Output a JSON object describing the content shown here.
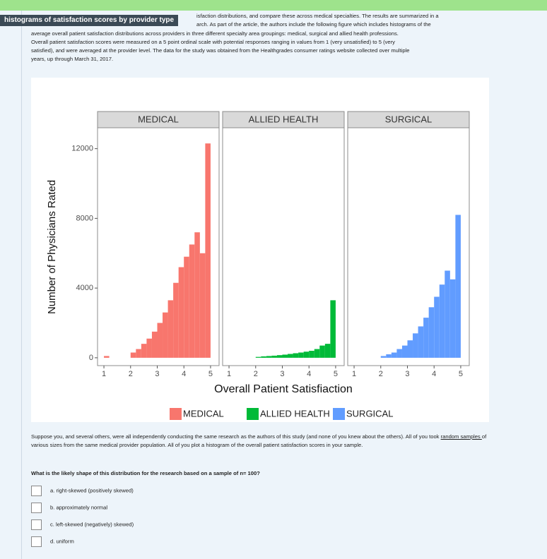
{
  "tooltip": "histograms of satisfaction scores by provider type",
  "intro_lines": [
    "isfaction distributions, and compare these across medical specialties.  The results are summarized in a",
    "arch.  As part of the article, the authors include the following figure which includes histograms of the",
    "average overall patient satisfaction distributions across providers in three different specialty area groupings: medical, surgical and allied health professions.",
    "Overall patient satisfaction scores were measured on a 5 point ordinal scale with potential responses ranging in values from 1 (very unsatisfied) to 5 (very",
    "satisfied), and were averaged at the provider level. The data for the study was obtained  from the Healthgrades consumer ratings website collected over multiple",
    "years, up through March 31, 2017."
  ],
  "chart_data": {
    "type": "histogram",
    "xlabel": "Overall Patient Satisfiaction",
    "ylabel": "Number of Physicians Rated",
    "xlim": [
      0.76,
      5.32
    ],
    "xticks": [
      1,
      2,
      3,
      4,
      5
    ],
    "ylim": [
      -450,
      13200
    ],
    "yticks": [
      0,
      4000,
      8000,
      12000
    ],
    "grid": false,
    "bins": [
      1.0,
      1.2,
      1.4,
      1.6,
      1.8,
      2.0,
      2.2,
      2.4,
      2.6,
      2.8,
      3.0,
      3.2,
      3.4,
      3.6,
      3.8,
      4.0,
      4.2,
      4.4,
      4.6,
      4.8,
      5.0
    ],
    "panels": [
      {
        "name": "MEDICAL",
        "color": "#f8766d",
        "values": [
          100,
          0,
          0,
          0,
          0,
          300,
          500,
          800,
          1100,
          1500,
          2000,
          2600,
          3300,
          4300,
          5200,
          5800,
          6500,
          7200,
          6000,
          12300
        ]
      },
      {
        "name": "ALLIED HEALTH",
        "color": "#00ba38",
        "values": [
          0,
          0,
          0,
          0,
          0,
          50,
          80,
          100,
          120,
          150,
          180,
          220,
          260,
          300,
          350,
          400,
          500,
          700,
          800,
          3300
        ]
      },
      {
        "name": "SURGICAL",
        "color": "#619cff",
        "values": [
          0,
          0,
          0,
          0,
          0,
          100,
          200,
          300,
          500,
          700,
          1000,
          1400,
          1800,
          2300,
          2900,
          3500,
          4200,
          5000,
          4500,
          8200
        ]
      }
    ]
  },
  "question": {
    "before": "Suppose you, and several others, were all independently conducting the same research as the authors of this study (and none of you knew about the others).  All of you took ",
    "link": "random samples ",
    "after": "of various sizes from the same medical provider population.  All of you plot a histogram of the overall patient satisfaction scores in your sample."
  },
  "prompt": "What is the likely shape of this distribution for the research based on a sample of n= 100?",
  "options": [
    "a. right-skewed (positively skewed)",
    "b. approximately normal",
    "c. left-skewed (negatively) skewed)",
    "d. uniform"
  ]
}
